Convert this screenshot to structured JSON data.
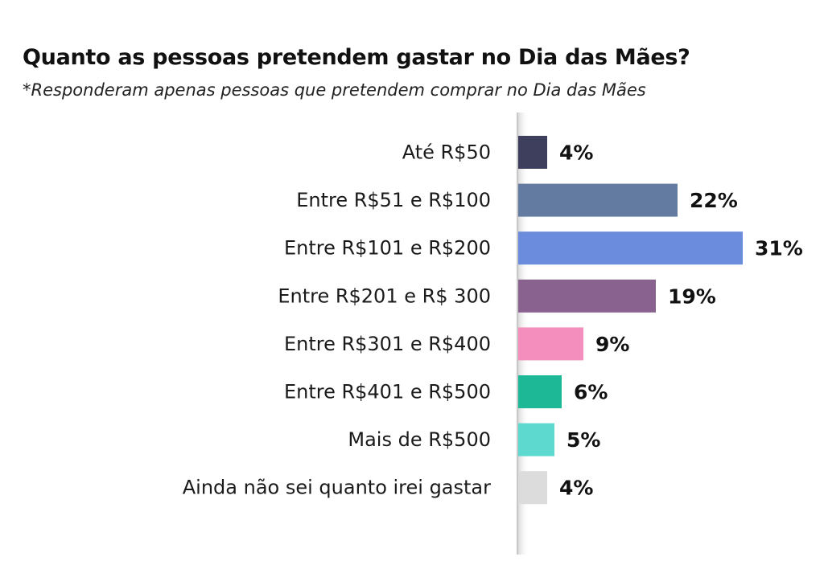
{
  "chart_data": {
    "type": "bar",
    "orientation": "horizontal",
    "title": "Quanto as pessoas pretendem gastar no Dia das Mães?",
    "subtitle": "*Responderam apenas pessoas que pretendem comprar no Dia das Mães",
    "categories": [
      "Até R$50",
      "Entre R$51 e R$100",
      "Entre R$101 e R$200",
      "Entre R$201 e R$ 300",
      "Entre R$301 e R$400",
      "Entre R$401 e R$500",
      "Mais de R$500",
      "Ainda não sei quanto irei gastar"
    ],
    "values": [
      4,
      22,
      31,
      19,
      9,
      6,
      5,
      4
    ],
    "data_labels": [
      "4%",
      "22%",
      "31%",
      "19%",
      "9%",
      "6%",
      "5%",
      "4%"
    ],
    "colors": [
      "#3e3f5c",
      "#637ba0",
      "#6b8cdc",
      "#8a6290",
      "#f48fbd",
      "#1db895",
      "#5ed9d0",
      "#dcdcdc"
    ],
    "unit": "%",
    "grid": false,
    "legend": "none"
  }
}
